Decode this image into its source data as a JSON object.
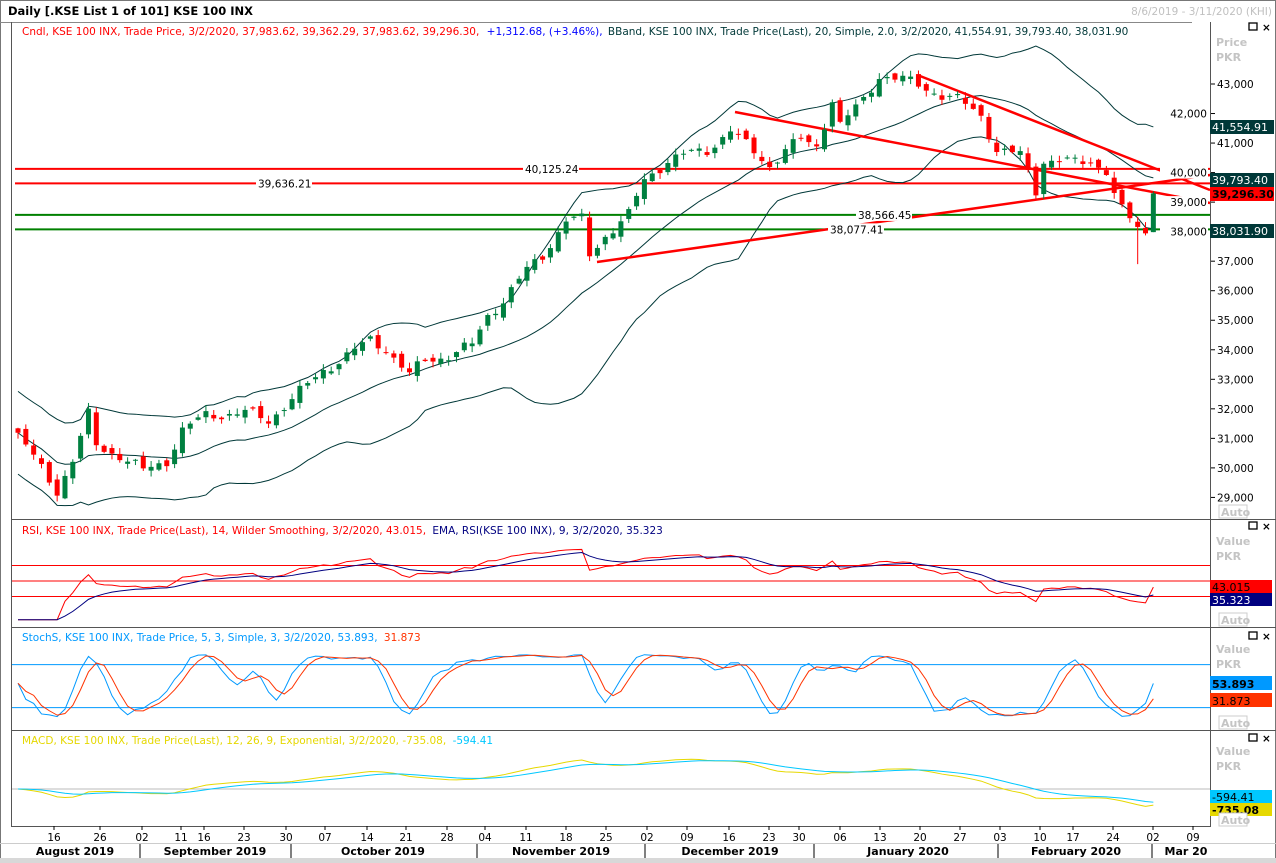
{
  "window": {
    "title": "Daily [.KSE List 1 of 101] KSE 100 INX",
    "date_range": "8/6/2019 - 3/11/2020 (KHI)"
  },
  "main_panel": {
    "legend_candle": "Cndl, KSE 100 INX, Trade Price, 3/2/2020, 37,983.62, 39,362.29, 37,983.62, 39,296.30,",
    "legend_change": "+1,312.68, (+3.46%),",
    "legend_bband": "BBand, KSE 100 INX, Trade Price(Last),  20, Simple, 2.0, 3/2/2020, 41,554.91, 39,793.40, 38,031.90",
    "axis_title": "Price",
    "axis_unit": "PKR",
    "price_ticks": [
      "43,000",
      "42,000",
      "41,000",
      "40,000",
      "39,000",
      "38,000",
      "37,000",
      "36,000",
      "35,000",
      "34,000",
      "33,000",
      "32,000",
      "31,000",
      "30,000",
      "29,000"
    ],
    "badges": {
      "bb_upper": "41,554.91",
      "bb_mid": "39,793.40",
      "last": "39,296.30",
      "bb_lower": "38,031.90"
    },
    "hlines": [
      {
        "label": "40,125.24",
        "value": 40125.24,
        "color": "#ff0000"
      },
      {
        "label": "39,636.21",
        "value": 39636.21,
        "color": "#ff0000"
      },
      {
        "label": "38,566.45",
        "value": 38566.45,
        "color": "#008000"
      },
      {
        "label": "38,077.41",
        "value": 38077.41,
        "color": "#008000"
      }
    ],
    "auto_label": "Auto"
  },
  "rsi_panel": {
    "legend_rsi": "RSI, KSE 100 INX, Trade Price(Last),  14, Wilder Smoothing, 3/2/2020, 43.015,",
    "legend_ema": "EMA, RSI(KSE 100 INX),  9, 3/2/2020, 35.323",
    "axis_title": "Value",
    "axis_unit": "PKR",
    "badge_rsi": "43.015",
    "badge_ema": "35.323",
    "auto_label": "Auto"
  },
  "stoch_panel": {
    "legend_k": "StochS, KSE 100 INX, Trade Price,  5, 3, Simple, 3, 3/2/2020, 53.893,",
    "legend_d": "31.873",
    "axis_title": "Value",
    "axis_unit": "PKR",
    "badge_k": "53.893",
    "badge_d": "31.873",
    "auto_label": "Auto"
  },
  "macd_panel": {
    "legend_macd": "MACD, KSE 100 INX, Trade Price(Last),  12, 26, 9, Exponential, 3/2/2020, -735.08,",
    "legend_signal": "-594.41",
    "axis_title": "Value",
    "axis_unit": "PKR",
    "badge_signal": "-594.41",
    "badge_macd": "-735.08",
    "auto_label": "Auto"
  },
  "x_axis": {
    "day_ticks": [
      "16",
      "26",
      "02",
      "11",
      "16",
      "23",
      "30",
      "07",
      "14",
      "21",
      "28",
      "04",
      "11",
      "18",
      "25",
      "02",
      "09",
      "16",
      "23",
      "30",
      "06",
      "13",
      "20",
      "27",
      "03",
      "10",
      "17",
      "24",
      "02",
      "09"
    ],
    "months": [
      "August 2019",
      "September 2019",
      "October 2019",
      "November 2019",
      "December 2019",
      "January 2020",
      "February 2020",
      "Mar 20"
    ]
  },
  "colors": {
    "up": "#008040",
    "down": "#ff0000",
    "bband": "#003838",
    "rsi": "#ff0000",
    "rsi_ema": "#000080",
    "stoch_k": "#0099ff",
    "stoch_d": "#ff3300",
    "macd": "#e6d800",
    "signal": "#00c8ff"
  },
  "chart_data": {
    "type": "candlestick",
    "title": "Daily [.KSE List 1 of 101] KSE 100 INX",
    "ylabel": "Price (PKR)",
    "ylim": [
      28600,
      43800
    ],
    "last_candle": {
      "date": "3/2/2020",
      "open": 37983.62,
      "high": 39362.29,
      "low": 37983.62,
      "close": 39296.3
    },
    "close_anchors_trading_day": [
      [
        0,
        31100
      ],
      [
        5,
        29240
      ],
      [
        7,
        30250
      ],
      [
        9,
        31780
      ],
      [
        10,
        30760
      ],
      [
        13,
        30420
      ],
      [
        16,
        29900
      ],
      [
        19,
        30250
      ],
      [
        21,
        31270
      ],
      [
        24,
        31780
      ],
      [
        29,
        31880
      ],
      [
        32,
        31600
      ],
      [
        34,
        32120
      ],
      [
        37,
        32800
      ],
      [
        39,
        33300
      ],
      [
        42,
        33810
      ],
      [
        45,
        34320
      ],
      [
        47,
        34050
      ],
      [
        50,
        33140
      ],
      [
        52,
        33640
      ],
      [
        55,
        33810
      ],
      [
        58,
        34150
      ],
      [
        60,
        35170
      ],
      [
        62,
        35680
      ],
      [
        65,
        36690
      ],
      [
        67,
        37200
      ],
      [
        70,
        38390
      ],
      [
        72,
        38400
      ],
      [
        73,
        37200
      ],
      [
        75,
        37880
      ],
      [
        78,
        38560
      ],
      [
        80,
        39750
      ],
      [
        83,
        40420
      ],
      [
        85,
        40590
      ],
      [
        88,
        40760
      ],
      [
        91,
        41440
      ],
      [
        93,
        40930
      ],
      [
        96,
        40250
      ],
      [
        98,
        40760
      ],
      [
        100,
        41100
      ],
      [
        102,
        40900
      ],
      [
        104,
        42460
      ],
      [
        105,
        41610
      ],
      [
        108,
        42460
      ],
      [
        110,
        43300
      ],
      [
        113,
        43140
      ],
      [
        115,
        42970
      ],
      [
        118,
        42630
      ],
      [
        120,
        42460
      ],
      [
        123,
        41950
      ],
      [
        125,
        40760
      ],
      [
        128,
        40590
      ],
      [
        130,
        39410
      ],
      [
        131,
        40420
      ],
      [
        133,
        40400
      ],
      [
        135,
        40320
      ],
      [
        137,
        40400
      ],
      [
        139,
        40080
      ],
      [
        140,
        39240
      ],
      [
        141,
        38730
      ],
      [
        143,
        38120
      ],
      [
        144,
        37980
      ],
      [
        145,
        39296.3
      ]
    ],
    "indicators": {
      "bband": {
        "period": 20,
        "type": "Simple",
        "dev": 2.0,
        "upper": 41554.91,
        "middle": 39793.4,
        "lower": 38031.9
      },
      "rsi": {
        "period": 14,
        "smoothing": "Wilder",
        "value": 43.015,
        "ema_period": 9,
        "ema_value": 35.323,
        "levels": [
          70,
          50,
          30
        ]
      },
      "stoch": {
        "k": 5,
        "d": 3,
        "smooth": 3,
        "k_value": 53.893,
        "d_value": 31.873,
        "levels": [
          80,
          20
        ]
      },
      "macd": {
        "fast": 12,
        "slow": 26,
        "signal": 9,
        "macd": -735.08,
        "signal_value": -594.41
      }
    }
  }
}
